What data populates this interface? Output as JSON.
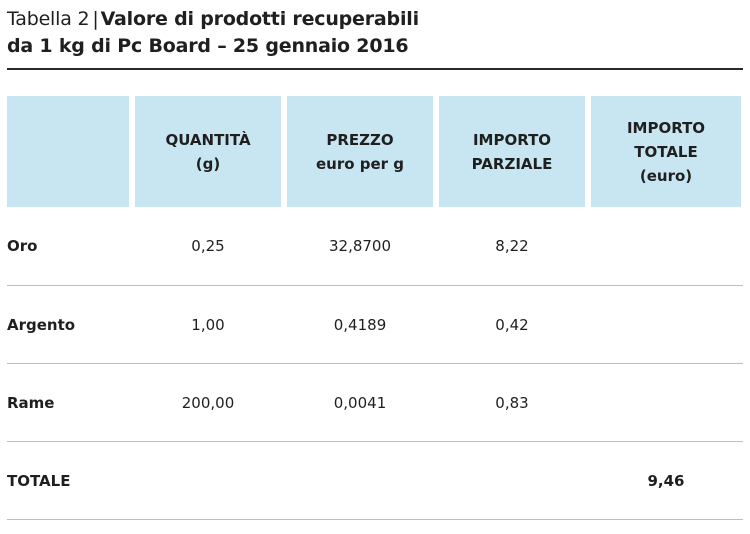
{
  "title": {
    "label": "Tabella 2",
    "separator": "|",
    "heading_line1": "Valore di prodotti recuperabili",
    "heading_line2": "da 1 kg di Pc Board – 25 gennaio 2016"
  },
  "table": {
    "headers": [
      {
        "lines": []
      },
      {
        "lines": [
          "QUANTITÀ",
          "(g)"
        ]
      },
      {
        "lines": [
          "PREZZO",
          "euro per g"
        ]
      },
      {
        "lines": [
          "IMPORTO",
          "PARZIALE"
        ]
      },
      {
        "lines": [
          "IMPORTO",
          "TOTALE",
          "(euro)"
        ]
      }
    ],
    "rows": [
      {
        "label": "Oro",
        "quantita": "0,25",
        "prezzo": "32,8700",
        "parziale": "8,22",
        "totale": ""
      },
      {
        "label": "Argento",
        "quantita": "1,00",
        "prezzo": "0,4189",
        "parziale": "0,42",
        "totale": ""
      },
      {
        "label": "Rame",
        "quantita": "200,00",
        "prezzo": "0,0041",
        "parziale": "0,83",
        "totale": ""
      },
      {
        "label": "TOTALE",
        "quantita": "",
        "prezzo": "",
        "parziale": "",
        "totale": "9,46"
      }
    ]
  },
  "colors": {
    "header_background": "#c8e6f1",
    "rule": "#2a2a2a",
    "row_divider": "#bdbdbd"
  }
}
